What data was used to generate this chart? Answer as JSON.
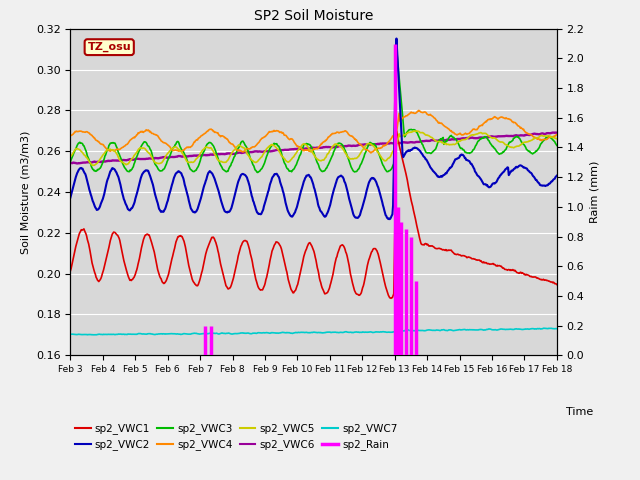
{
  "title": "SP2 Soil Moisture",
  "ylabel_left": "Soil Moisture (m3/m3)",
  "ylabel_right": "Raim (mm)",
  "xlabel": "Time",
  "tz_label": "TZ_osu",
  "xlim_days": [
    3,
    18
  ],
  "ylim_left": [
    0.16,
    0.32
  ],
  "ylim_right": [
    0.0,
    2.2
  ],
  "yticks_left": [
    0.16,
    0.18,
    0.2,
    0.22,
    0.24,
    0.26,
    0.28,
    0.3,
    0.32
  ],
  "yticks_right": [
    0.0,
    0.2,
    0.4,
    0.6,
    0.8,
    1.0,
    1.2,
    1.4,
    1.6,
    1.8,
    2.0,
    2.2
  ],
  "xtick_positions": [
    3,
    4,
    5,
    6,
    7,
    8,
    9,
    10,
    11,
    12,
    13,
    14,
    15,
    16,
    17,
    18
  ],
  "xtick_labels": [
    "Feb 3",
    "Feb 4",
    "Feb 5",
    "Feb 6",
    "Feb 7",
    "Feb 8",
    "Feb 9",
    "Feb 10",
    "Feb 11",
    "Feb 12",
    "Feb 13",
    "Feb 14",
    "Feb 15",
    "Feb 16",
    "Feb 17",
    "Feb 18"
  ],
  "colors": {
    "VWC1": "#dd0000",
    "VWC2": "#0000bb",
    "VWC3": "#00bb00",
    "VWC4": "#ff8800",
    "VWC5": "#cccc00",
    "VWC6": "#990099",
    "VWC7": "#00cccc",
    "Rain": "#ff00ff"
  },
  "background_color": "#e8e8e8",
  "plot_bg_color": "#d8d8d8",
  "grid_color": "#ffffff",
  "fig_bg_color": "#f0f0f0",
  "rain_events": {
    "days": [
      7.15,
      7.35,
      13.02,
      13.1,
      13.2,
      13.35,
      13.5,
      13.65
    ],
    "vals": [
      0.2,
      0.2,
      2.1,
      1.0,
      0.9,
      0.85,
      0.8,
      0.5
    ]
  }
}
